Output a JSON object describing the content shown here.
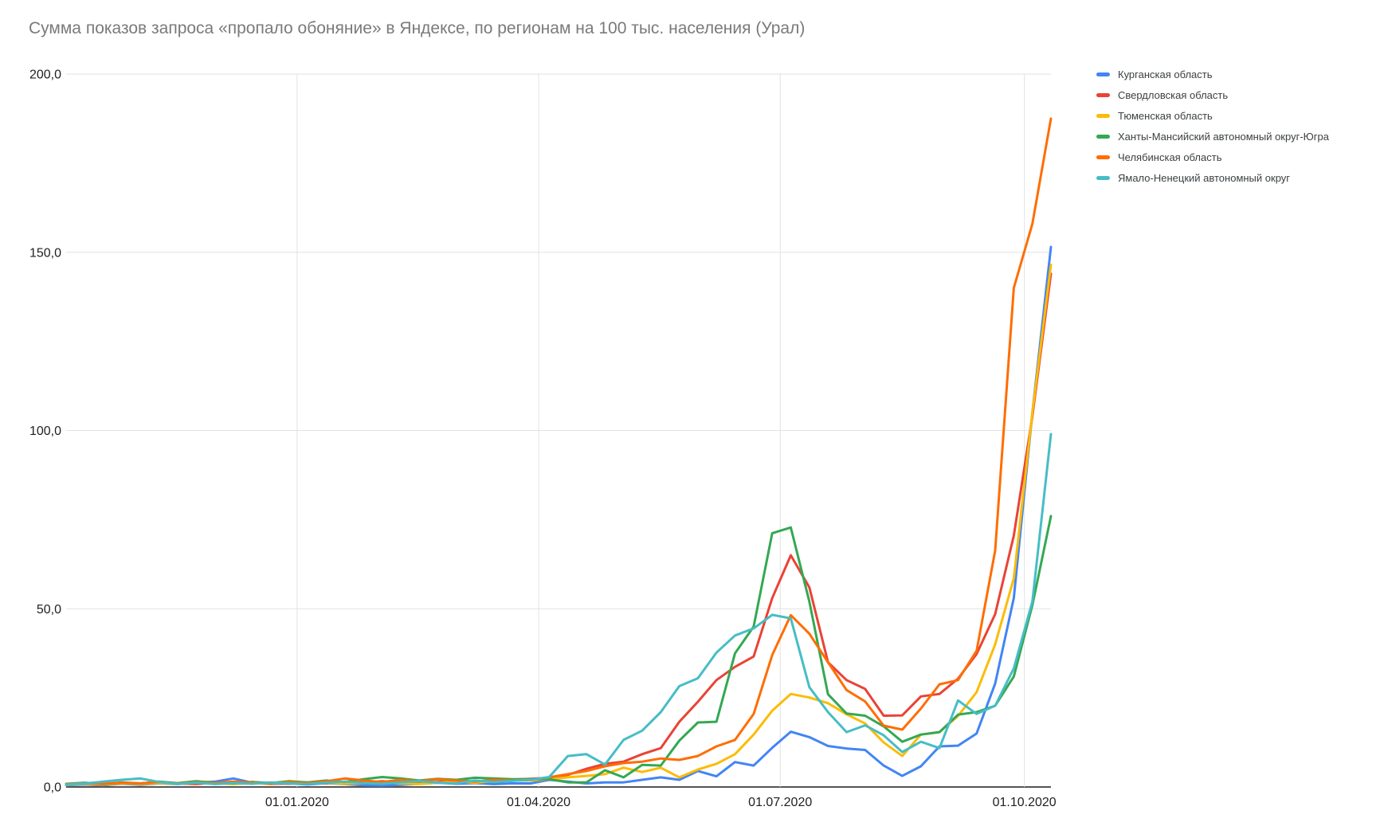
{
  "chart_data": {
    "type": "line",
    "title": "Сумма показов запроса «пропало обоняние» в Яндексе, по регионам на 100 тыс. населения (Урал)",
    "xlabel": "",
    "ylabel": "",
    "ylim": [
      0,
      200
    ],
    "grid": true,
    "legend_position": "right-top",
    "x_description": "weekly data points, early October 2019 through mid October 2020",
    "y_ticks": [
      {
        "value": 0,
        "label": "0,0"
      },
      {
        "value": 50,
        "label": "50,0"
      },
      {
        "value": 100,
        "label": "100,0"
      },
      {
        "value": 150,
        "label": "150,0"
      },
      {
        "value": 200,
        "label": "200,0"
      }
    ],
    "x_ticks": [
      {
        "week": 12.43,
        "label": "01.01.2020"
      },
      {
        "week": 25.43,
        "label": "01.04.2020"
      },
      {
        "week": 38.43,
        "label": "01.07.2020"
      },
      {
        "week": 51.57,
        "label": "01.10.2020"
      }
    ],
    "series": [
      {
        "name": "Курганская область",
        "color": "#4285F4",
        "values": [
          0.5,
          0.7,
          0.5,
          0.9,
          0.6,
          1.0,
          0.8,
          1.2,
          1.5,
          2.4,
          1.2,
          0.8,
          1.0,
          0.7,
          1.1,
          0.8,
          0.5,
          0.4,
          0.6,
          0.9,
          1.2,
          0.9,
          1.1,
          0.8,
          1.0,
          1.0,
          2.0,
          1.5,
          1.0,
          1.3,
          1.3,
          2.0,
          2.7,
          2.0,
          4.5,
          3.0,
          7.0,
          6.0,
          11.0,
          15.5,
          14.0,
          11.5,
          10.8,
          10.4,
          6.0,
          3.1,
          5.8,
          11.4,
          11.6,
          15.0,
          29.0,
          53.0,
          105.0,
          151.5
        ]
      },
      {
        "name": "Свердловская область",
        "color": "#EA4335",
        "values": [
          0.8,
          1.0,
          0.7,
          1.1,
          0.9,
          1.3,
          1.0,
          0.8,
          1.2,
          1.0,
          1.4,
          1.1,
          0.9,
          1.3,
          1.0,
          1.5,
          1.2,
          1.6,
          1.3,
          1.0,
          1.4,
          1.8,
          1.5,
          1.9,
          2.1,
          2.3,
          2.6,
          3.4,
          5.1,
          6.5,
          7.1,
          9.2,
          10.9,
          18.3,
          23.9,
          30.0,
          33.7,
          36.6,
          53.0,
          65.0,
          56.0,
          35.0,
          30.0,
          27.5,
          20.0,
          20.1,
          25.4,
          26.1,
          30.4,
          37.3,
          48.5,
          70.5,
          104.0,
          144.0
        ]
      },
      {
        "name": "Тюменская область",
        "color": "#FBBC04",
        "values": [
          0.6,
          0.9,
          0.7,
          1.0,
          0.8,
          1.1,
          0.9,
          1.2,
          1.0,
          0.8,
          1.1,
          0.9,
          1.3,
          1.0,
          1.2,
          0.9,
          1.1,
          1.3,
          1.0,
          0.8,
          1.2,
          1.5,
          1.2,
          1.6,
          1.8,
          1.8,
          2.2,
          2.7,
          3.1,
          3.6,
          5.4,
          4.2,
          5.4,
          2.7,
          4.9,
          6.5,
          9.2,
          14.7,
          21.4,
          26.1,
          25.1,
          23.5,
          20.4,
          17.8,
          12.5,
          8.7,
          14.7,
          15.4,
          19.9,
          26.6,
          40.0,
          58.5,
          105.0,
          146.5
        ]
      },
      {
        "name": "Ханты-Мансийский автономный округ-Югра",
        "color": "#34A853",
        "values": [
          0.9,
          1.2,
          0.8,
          1.3,
          1.0,
          1.5,
          1.1,
          1.6,
          1.2,
          1.0,
          1.4,
          1.1,
          1.6,
          1.3,
          1.8,
          1.4,
          2.2,
          2.8,
          2.4,
          1.8,
          2.3,
          2.0,
          2.6,
          2.4,
          2.2,
          2.2,
          2.2,
          1.3,
          1.3,
          4.7,
          2.7,
          6.2,
          6.0,
          13.0,
          18.1,
          18.3,
          37.5,
          45.0,
          71.2,
          72.8,
          52.0,
          26.0,
          20.6,
          20.0,
          17.0,
          12.7,
          14.7,
          15.4,
          20.3,
          21.0,
          22.8,
          31.0,
          51.0,
          76.0
        ]
      },
      {
        "name": "Челябинская область",
        "color": "#FF6D01",
        "values": [
          0.8,
          1.1,
          0.9,
          1.2,
          1.0,
          1.4,
          1.0,
          1.3,
          1.1,
          1.5,
          1.2,
          1.0,
          1.4,
          1.1,
          1.6,
          2.4,
          1.8,
          1.4,
          2.0,
          1.6,
          2.2,
          1.8,
          1.5,
          2.0,
          1.8,
          2.0,
          2.7,
          3.6,
          4.5,
          5.8,
          6.7,
          7.1,
          8.0,
          7.6,
          8.7,
          11.4,
          13.2,
          20.5,
          37.0,
          48.2,
          43.0,
          35.0,
          27.2,
          24.0,
          17.2,
          16.1,
          22.0,
          28.8,
          30.0,
          38.2,
          66.3,
          140.0,
          158.0,
          187.5
        ]
      },
      {
        "name": "Ямало-Ненецкий автономный округ",
        "color": "#46BDC6",
        "values": [
          0.7,
          1.0,
          1.5,
          2.0,
          2.4,
          1.4,
          0.9,
          1.2,
          0.8,
          1.1,
          0.9,
          1.3,
          1.0,
          0.8,
          1.2,
          1.5,
          1.1,
          0.9,
          1.3,
          1.6,
          1.2,
          1.0,
          1.8,
          1.4,
          1.7,
          2.0,
          2.8,
          8.7,
          9.2,
          6.3,
          13.2,
          15.8,
          21.0,
          28.3,
          30.5,
          37.7,
          42.5,
          44.5,
          48.3,
          47.3,
          28.0,
          21.0,
          15.4,
          17.3,
          14.5,
          9.8,
          12.7,
          10.9,
          24.3,
          20.5,
          22.8,
          33.3,
          52.0,
          99.0
        ]
      }
    ]
  }
}
